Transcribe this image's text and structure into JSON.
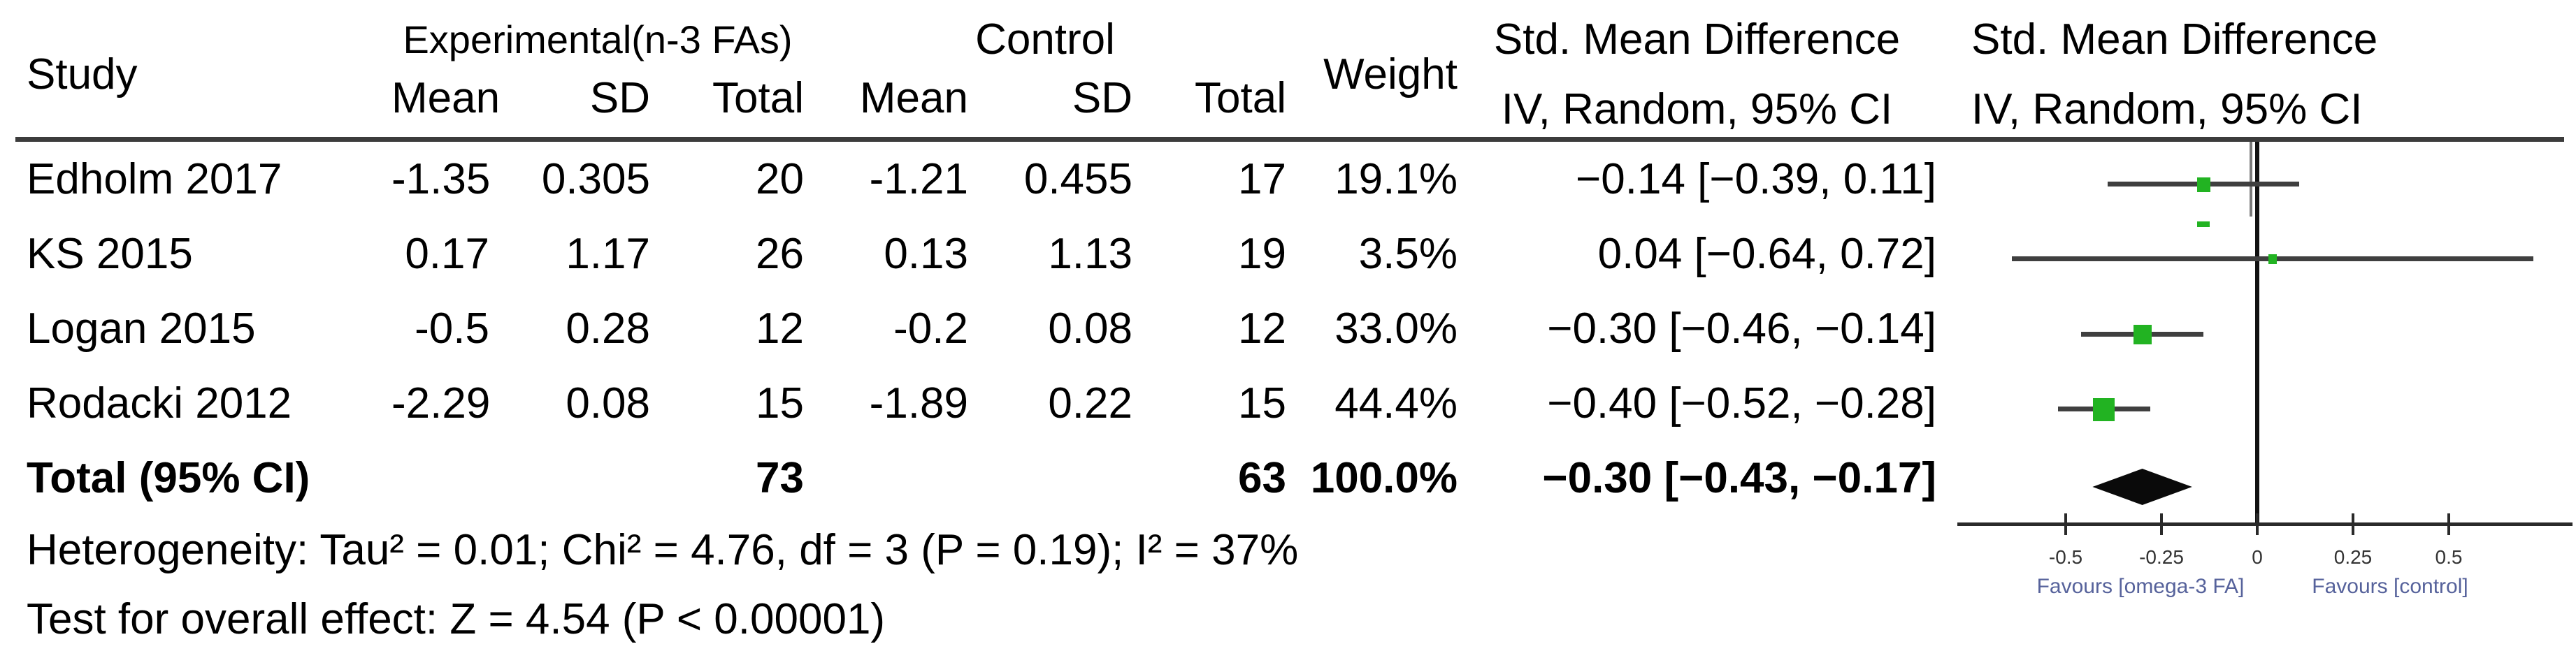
{
  "table": {
    "header": {
      "study": "Study",
      "group_experimental": "Experimental(n-3 FAs)",
      "group_control": "Control",
      "weight": "Weight",
      "sub_exp_mean": "Mean",
      "sub_exp_sd": "SD",
      "sub_exp_total": "Total",
      "sub_ctl_mean": "Mean",
      "sub_ctl_sd": "SD",
      "sub_ctl_total": "Total",
      "smd_title": "Std. Mean Difference",
      "smd_subtitle": "IV, Random, 95% CI",
      "plot_title": "Std. Mean Difference",
      "plot_subtitle": "IV, Random, 95% CI"
    },
    "rows": [
      {
        "study": "Edholm 2017",
        "exp_mean": "-1.35",
        "exp_sd": "0.305",
        "exp_total": "20",
        "ctl_mean": "-1.21",
        "ctl_sd": "0.455",
        "ctl_total": "17",
        "weight": "19.1%",
        "smd": "−0.14 [−0.39, 0.11]"
      },
      {
        "study": "KS 2015",
        "exp_mean": "0.17",
        "exp_sd": "1.17",
        "exp_total": "26",
        "ctl_mean": "0.13",
        "ctl_sd": "1.13",
        "ctl_total": "19",
        "weight": "3.5%",
        "smd": "0.04 [−0.64, 0.72]"
      },
      {
        "study": "Logan 2015",
        "exp_mean": "-0.5",
        "exp_sd": "0.28",
        "exp_total": "12",
        "ctl_mean": "-0.2",
        "ctl_sd": "0.08",
        "ctl_total": "12",
        "weight": "33.0%",
        "smd": "−0.30 [−0.46, −0.14]"
      },
      {
        "study": "Rodacki 2012",
        "exp_mean": "-2.29",
        "exp_sd": "0.08",
        "exp_total": "15",
        "ctl_mean": "-1.89",
        "ctl_sd": "0.22",
        "ctl_total": "15",
        "weight": "44.4%",
        "smd": "−0.40 [−0.52, −0.28]"
      }
    ],
    "total_row": {
      "label": "Total (95% CI)",
      "exp_total": "73",
      "ctl_total": "63",
      "weight": "100.0%",
      "smd": "−0.30 [−0.43, −0.17]"
    }
  },
  "footnotes": {
    "heterogeneity": "Heterogeneity: Tau² = 0.01; Chi² = 4.76, df = 3 (P = 0.19); I² = 37%",
    "overall_effect": "Test for overall effect: Z = 4.54 (P < 0.00001)"
  },
  "chart_data": {
    "type": "forest",
    "effect_measure": "Std. Mean Difference",
    "model": "IV, Random, 95% CI",
    "studies": [
      {
        "name": "Edholm 2017",
        "est": -0.14,
        "lo": -0.39,
        "hi": 0.11,
        "weight_pct": 19.1
      },
      {
        "name": "KS 2015",
        "est": 0.04,
        "lo": -0.64,
        "hi": 0.72,
        "weight_pct": 3.5
      },
      {
        "name": "Logan 2015",
        "est": -0.3,
        "lo": -0.46,
        "hi": -0.14,
        "weight_pct": 33.0
      },
      {
        "name": "Rodacki 2012",
        "est": -0.4,
        "lo": -0.52,
        "hi": -0.28,
        "weight_pct": 44.4
      }
    ],
    "total": {
      "est": -0.3,
      "lo": -0.43,
      "hi": -0.17,
      "weight_pct": 100.0
    },
    "totals": {
      "experimental_n": 73,
      "control_n": 63
    },
    "axis_ticks": [
      -0.5,
      -0.25,
      0,
      0.25,
      0.5
    ],
    "axis_tick_labels": [
      "-0.5",
      "-0.25",
      "0",
      "0.25",
      "0.5"
    ],
    "xlim": [
      -0.78,
      0.83
    ],
    "favours_left": "Favours [omega-3 FA]",
    "favours_right": "Favours [control]",
    "marker_color": "#22b322",
    "favours_color": "#56629b",
    "line_color": "#3f3f3f",
    "diamond_color": "#0a0a0a"
  }
}
